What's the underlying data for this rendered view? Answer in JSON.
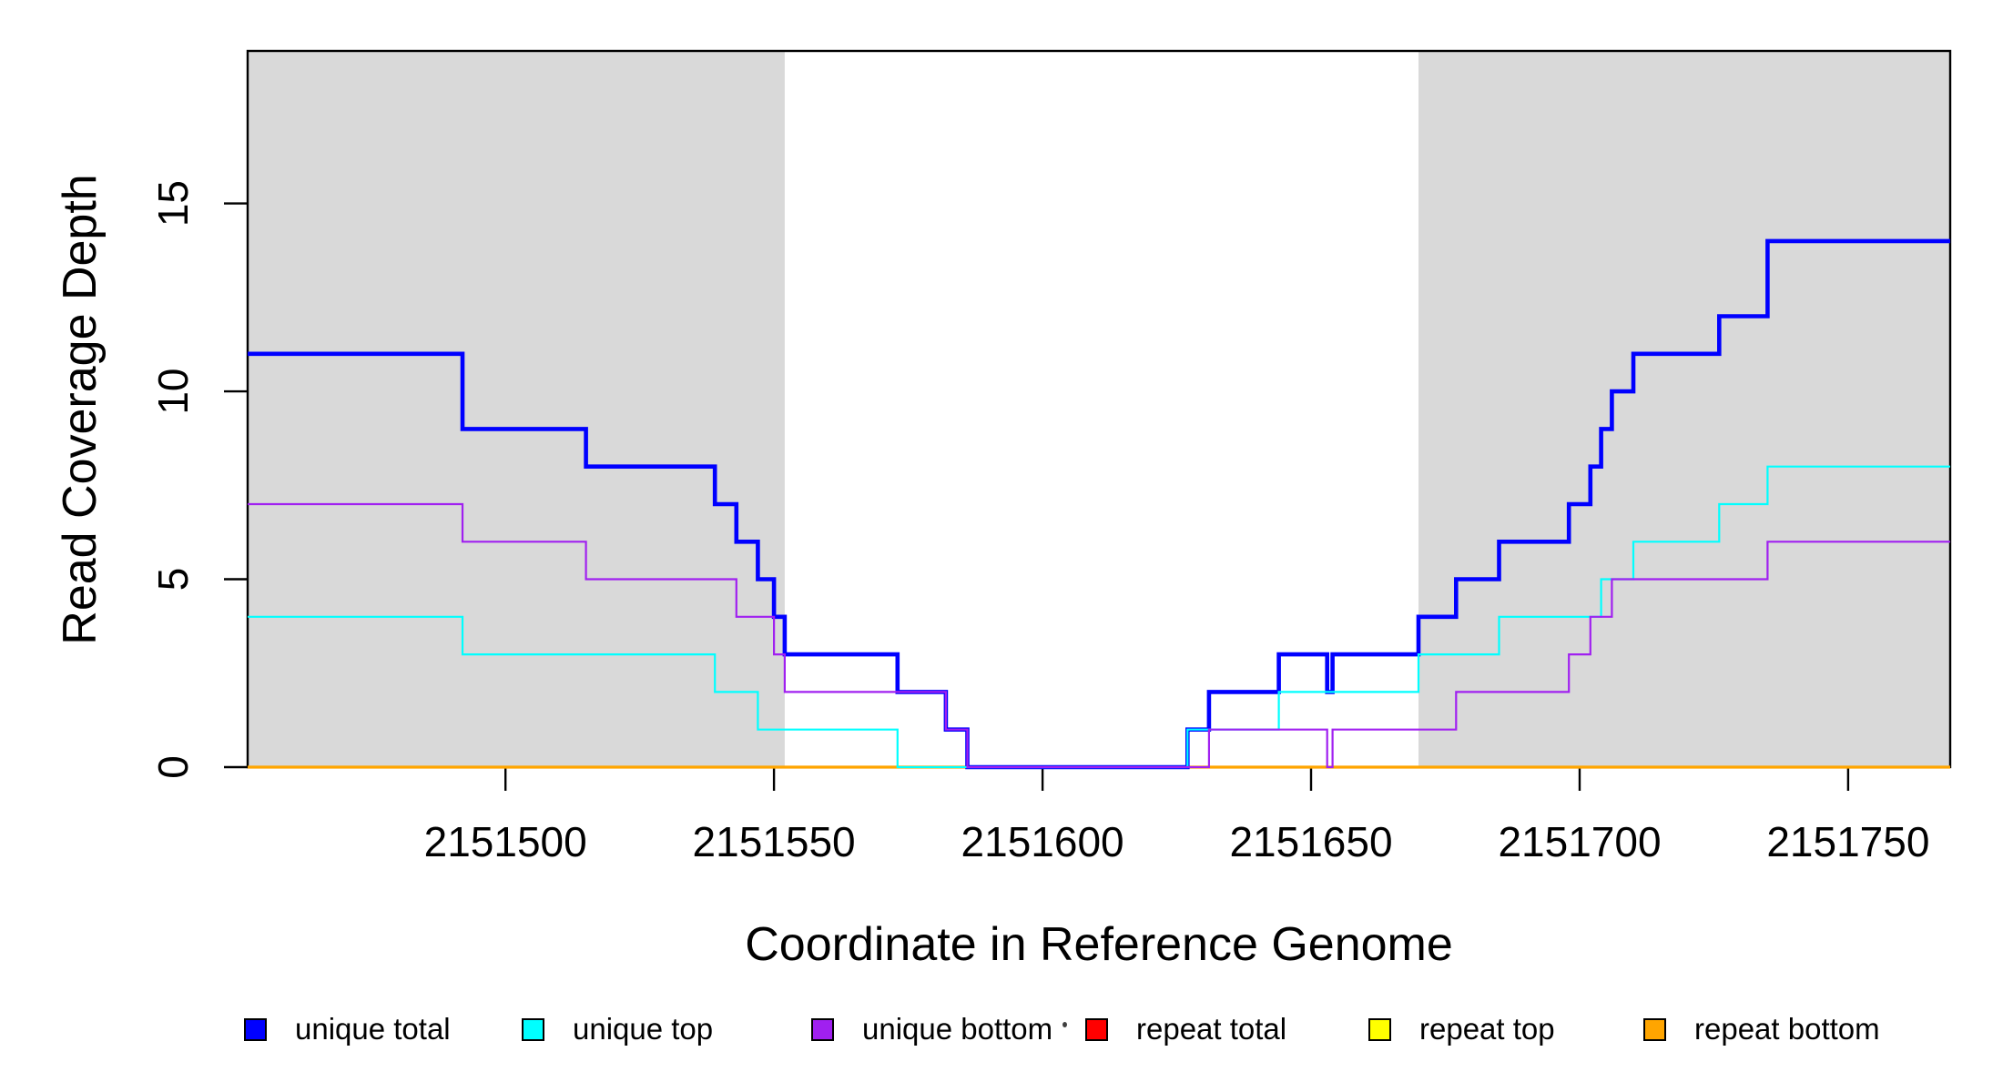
{
  "chart_data": {
    "type": "line",
    "subtype": "step",
    "title": "",
    "xlabel": "Coordinate in Reference Genome",
    "ylabel": "Read Coverage Depth",
    "xlim": [
      2151452,
      2151769
    ],
    "ylim": [
      0,
      19.06
    ],
    "x_ticks": [
      2151500,
      2151550,
      2151600,
      2151650,
      2151700,
      2151750
    ],
    "y_ticks": [
      0,
      5,
      10,
      15
    ],
    "grid": false,
    "legend_position": "bottom",
    "plot_background": "#ffffff",
    "shaded_region_color": "#d9d9d9",
    "shaded_regions": [
      {
        "x_from": 2151452,
        "x_to": 2151552
      },
      {
        "x_from": 2151670,
        "x_to": 2151769
      }
    ],
    "series": [
      {
        "name": "repeat total",
        "color": "#ff0000",
        "line_width": 2.4,
        "steps": [
          [
            2151452,
            0
          ]
        ]
      },
      {
        "name": "repeat top",
        "color": "#ffff00",
        "line_width": 2.4,
        "steps": [
          [
            2151452,
            0
          ]
        ]
      },
      {
        "name": "repeat bottom",
        "color": "#ffa500",
        "line_width": 3.2,
        "steps": [
          [
            2151452,
            0
          ]
        ]
      },
      {
        "name": "unique total",
        "color": "#0000ff",
        "line_width": 4.6,
        "steps": [
          [
            2151452,
            11
          ],
          [
            2151492,
            9
          ],
          [
            2151515,
            8
          ],
          [
            2151539,
            7
          ],
          [
            2151543,
            6
          ],
          [
            2151547,
            5
          ],
          [
            2151550,
            4
          ],
          [
            2151552,
            3
          ],
          [
            2151573,
            2
          ],
          [
            2151582,
            1
          ],
          [
            2151586,
            0
          ],
          [
            2151627,
            1
          ],
          [
            2151631,
            2
          ],
          [
            2151644,
            3
          ],
          [
            2151653,
            2
          ],
          [
            2151654,
            3
          ],
          [
            2151670,
            4
          ],
          [
            2151677,
            5
          ],
          [
            2151685,
            6
          ],
          [
            2151698,
            7
          ],
          [
            2151702,
            8
          ],
          [
            2151704,
            9
          ],
          [
            2151706,
            10
          ],
          [
            2151710,
            11
          ],
          [
            2151726,
            12
          ],
          [
            2151735,
            14
          ]
        ]
      },
      {
        "name": "unique top",
        "color": "#00ffff",
        "line_width": 2.2,
        "steps": [
          [
            2151452,
            4
          ],
          [
            2151492,
            3
          ],
          [
            2151539,
            2
          ],
          [
            2151547,
            1
          ],
          [
            2151573,
            0
          ],
          [
            2151627,
            1
          ],
          [
            2151644,
            2
          ],
          [
            2151670,
            3
          ],
          [
            2151685,
            4
          ],
          [
            2151704,
            5
          ],
          [
            2151710,
            6
          ],
          [
            2151726,
            7
          ],
          [
            2151735,
            8
          ]
        ]
      },
      {
        "name": "unique bottom",
        "color": "#a020f0",
        "line_width": 2.2,
        "steps": [
          [
            2151452,
            7
          ],
          [
            2151492,
            6
          ],
          [
            2151515,
            5
          ],
          [
            2151543,
            4
          ],
          [
            2151550,
            3
          ],
          [
            2151552,
            2
          ],
          [
            2151582,
            1
          ],
          [
            2151586,
            0
          ],
          [
            2151631,
            1
          ],
          [
            2151653,
            0
          ],
          [
            2151654,
            1
          ],
          [
            2151677,
            2
          ],
          [
            2151698,
            3
          ],
          [
            2151702,
            4
          ],
          [
            2151706,
            5
          ],
          [
            2151735,
            6
          ]
        ]
      }
    ]
  },
  "legend": {
    "items": [
      {
        "label": "unique total",
        "color": "#0000ff"
      },
      {
        "label": "unique top",
        "color": "#00ffff"
      },
      {
        "label": "unique bottom",
        "color": "#a020f0"
      },
      {
        "label": "repeat total",
        "color": "#ff0000"
      },
      {
        "label": "repeat top",
        "color": "#ffff00"
      },
      {
        "label": "repeat bottom",
        "color": "#ffa500"
      }
    ]
  }
}
